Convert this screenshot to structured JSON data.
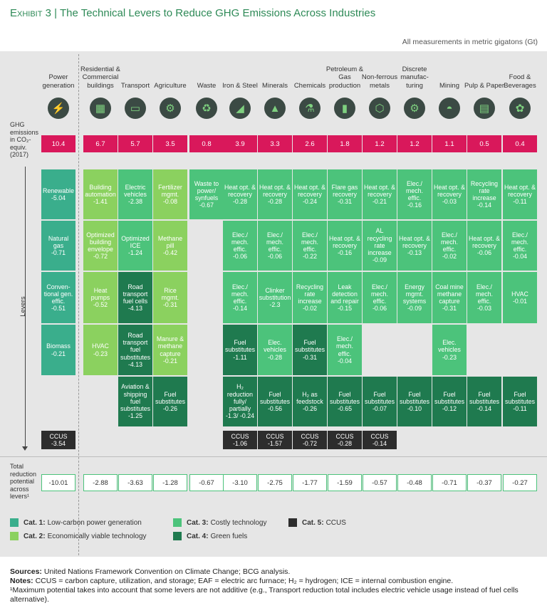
{
  "title": {
    "exhibit": "Exhibit 3",
    "separator": "|",
    "text": "The Technical Levers to Reduce GHG Emissions Across Industries"
  },
  "units_note": "All measurements in metric gigatons (Gt)",
  "colors": {
    "cat1": "#3aae8c",
    "cat2": "#8bd15f",
    "cat3": "#4cc37b",
    "cat4": "#1f7a4f",
    "cat5": "#2d2d2d",
    "emissions": "#d9185b",
    "title": "#2e8a57"
  },
  "row_labels": {
    "emissions": "GHG emissions in CO₂-equiv. (2017)",
    "levers": "Levers",
    "total": "Total reduction potential across levers¹"
  },
  "chart_data": {
    "type": "table",
    "columns": [
      {
        "name": "Power generation",
        "icon": "power-plant-icon",
        "emissions": "10.4",
        "total": "-10.01",
        "levers": [
          [
            "1",
            "Renewable",
            "-5.04"
          ],
          [
            "1",
            "Natural gas",
            "-0.71"
          ],
          [
            "1",
            "Conven-tional gen. effic.",
            "-0.51"
          ],
          [
            "1",
            "Biomass",
            "-0.21"
          ],
          null,
          [
            "5",
            "CCUS",
            "-3.54"
          ]
        ]
      },
      {
        "name": "Residential & Commercial buildings",
        "icon": "building-icon",
        "emissions": "6.7",
        "total": "-2.88",
        "levers": [
          [
            "2",
            "Building automation",
            "-1.41"
          ],
          [
            "2",
            "Optimized building envelope",
            "-0.72"
          ],
          [
            "2",
            "Heat pumps",
            "-0.52"
          ],
          [
            "2",
            "HVAC",
            "-0.23"
          ],
          null,
          null
        ]
      },
      {
        "name": "Transport",
        "icon": "car-icon",
        "emissions": "5.7",
        "total": "-3.63",
        "levers": [
          [
            "3",
            "Electric vehicles",
            "-2.38"
          ],
          [
            "3",
            "Optimized ICE",
            "-1.24"
          ],
          [
            "4",
            "Road transport fuel cells",
            "-4.13"
          ],
          [
            "4",
            "Road transport fuel substitutes",
            "-4.13"
          ],
          [
            "4",
            "Aviation & shipping fuel substitutes",
            "-1.25"
          ],
          null
        ]
      },
      {
        "name": "Agriculture",
        "icon": "tractor-icon",
        "emissions": "3.5",
        "total": "-1.28",
        "levers": [
          [
            "2",
            "Fertilizer mgmt.",
            "-0.08"
          ],
          [
            "2",
            "Methane pill",
            "-0.42"
          ],
          [
            "2",
            "Rice mgmt.",
            "-0.31"
          ],
          [
            "2",
            "Manure & methane capture",
            "-0.21"
          ],
          [
            "4",
            "Fuel substitutes",
            "-0.26"
          ],
          null
        ]
      },
      {
        "name": "Waste",
        "icon": "recycle-icon",
        "emissions": "0.8",
        "total": "-0.67",
        "levers": [
          [
            "3",
            "Waste to power/ synfuels",
            "-0.67"
          ],
          null,
          null,
          null,
          null,
          null
        ]
      },
      {
        "name": "Iron & Steel",
        "icon": "steel-icon",
        "emissions": "3.9",
        "total": "-3.10",
        "levers": [
          [
            "3",
            "Heat opt. & recovery",
            "-0.28"
          ],
          [
            "3",
            "Elec./ mech. effic.",
            "-0.06"
          ],
          [
            "3",
            "Elec./ mech. effic.",
            "-0.14"
          ],
          [
            "4",
            "Fuel substitutes",
            "-1.11"
          ],
          [
            "4",
            "H₂ reduction fully/ partially",
            "-1.3/ -0.24"
          ],
          [
            "5",
            "CCUS",
            "-1.06"
          ]
        ]
      },
      {
        "name": "Minerals",
        "icon": "minerals-icon",
        "emissions": "3.3",
        "total": "-2.75",
        "levers": [
          [
            "3",
            "Heat opt. & recovery",
            "-0.28"
          ],
          [
            "3",
            "Elec./ mech. effic.",
            "-0.06"
          ],
          [
            "3",
            "Clinker substitution",
            "-2.3"
          ],
          [
            "3",
            "Elec. vehicles",
            "-0.28"
          ],
          [
            "4",
            "Fuel substitutes",
            "-0.56"
          ],
          [
            "5",
            "CCUS",
            "-1.57"
          ]
        ]
      },
      {
        "name": "Chemicals",
        "icon": "flask-icon",
        "emissions": "2.6",
        "total": "-1.77",
        "levers": [
          [
            "3",
            "Heat opt. & recovery",
            "-0.24"
          ],
          [
            "3",
            "Elec./ mech. effic.",
            "-0.22"
          ],
          [
            "3",
            "Recycling rate increase",
            "-0.02"
          ],
          [
            "4",
            "Fuel substitutes",
            "-0.31"
          ],
          [
            "4",
            "H₂ as feedstock",
            "-0.26"
          ],
          [
            "5",
            "CCUS",
            "-0.72"
          ]
        ]
      },
      {
        "name": "Petroleum & Gas production",
        "icon": "oil-barrel-icon",
        "emissions": "1.8",
        "total": "-1.59",
        "levers": [
          [
            "3",
            "Flare gas recovery",
            "-0.31"
          ],
          [
            "3",
            "Heat opt. & recovery",
            "-0.16"
          ],
          [
            "3",
            "Leak detection and repair",
            "-0.15"
          ],
          [
            "3",
            "Elec./ mech. effic.",
            "-0.04"
          ],
          [
            "4",
            "Fuel substitutes",
            "-0.65"
          ],
          [
            "5",
            "CCUS",
            "-0.28"
          ]
        ]
      },
      {
        "name": "Non-ferrous metals",
        "icon": "metal-icon",
        "emissions": "1.2",
        "total": "-0.57",
        "levers": [
          [
            "3",
            "Heat opt. & recovery",
            "-0.21"
          ],
          [
            "3",
            "AL recycling rate increase",
            "-0.09"
          ],
          [
            "3",
            "Elec./ mech. effic.",
            "-0.06"
          ],
          null,
          [
            "4",
            "Fuel substitutes",
            "-0.07"
          ],
          [
            "5",
            "CCUS",
            "-0.14"
          ]
        ]
      },
      {
        "name": "Discrete manufac-turing",
        "icon": "gear-icon",
        "emissions": "1.2",
        "total": "-0.48",
        "levers": [
          [
            "3",
            "Elec./ mech. effic.",
            "-0.16"
          ],
          [
            "3",
            "Heat opt. & recovery",
            "-0.13"
          ],
          [
            "3",
            "Energy mgmt. systems",
            "-0.09"
          ],
          null,
          [
            "4",
            "Fuel substitutes",
            "-0.10"
          ],
          null
        ]
      },
      {
        "name": "Mining",
        "icon": "helmet-icon",
        "emissions": "1.1",
        "total": "-0.71",
        "levers": [
          [
            "3",
            "Heat opt. & recovery",
            "-0.03"
          ],
          [
            "3",
            "Elec./ mech. effic.",
            "-0.02"
          ],
          [
            "3",
            "Coal mine methane capture",
            "-0.31"
          ],
          [
            "3",
            "Elec. vehicles",
            "-0.23"
          ],
          [
            "4",
            "Fuel substitutes",
            "-0.12"
          ],
          null
        ]
      },
      {
        "name": "Pulp & Paper",
        "icon": "paper-icon",
        "emissions": "0.5",
        "total": "-0.37",
        "levers": [
          [
            "3",
            "Recycling rate increase",
            "-0.14"
          ],
          [
            "3",
            "Heat opt. & recovery",
            "-0.06"
          ],
          [
            "3",
            "Elec./ mech. effic.",
            "-0.03"
          ],
          null,
          [
            "4",
            "Fuel substitutes",
            "-0.14"
          ],
          null
        ]
      },
      {
        "name": "Food & Beverages",
        "icon": "food-icon",
        "emissions": "0.4",
        "total": "-0.27",
        "levers": [
          [
            "3",
            "Heat opt. & recovery",
            "-0.11"
          ],
          [
            "3",
            "Elec./ mech. effic.",
            "-0.04"
          ],
          [
            "3",
            "HVAC",
            "-0.01"
          ],
          null,
          [
            "4",
            "Fuel substitutes",
            "-0.11"
          ],
          null
        ]
      }
    ]
  },
  "legend": [
    {
      "cat": "Cat. 1:",
      "label": "Low-carbon power generation",
      "color": "#3aae8c"
    },
    {
      "cat": "Cat. 2:",
      "label": "Economically viable technology",
      "color": "#8bd15f"
    },
    {
      "cat": "Cat. 3:",
      "label": "Costly technology",
      "color": "#4cc37b"
    },
    {
      "cat": "Cat. 4:",
      "label": "Green fuels",
      "color": "#1f7a4f"
    },
    {
      "cat": "Cat. 5:",
      "label": "CCUS",
      "color": "#2d2d2d"
    }
  ],
  "notes": {
    "sources_label": "Sources:",
    "sources": "United Nations Framework Convention on Climate Change; BCG analysis.",
    "notes_label": "Notes:",
    "notes": "CCUS = carbon capture, utilization, and storage; EAF = electric arc furnace; H₂ = hydrogen; ICE = internal combustion engine.",
    "footnote": "¹Maximum potential takes into account that some levers are not additive (e.g., Transport reduction total includes electric vehicle usage instead of fuel cells alternative)."
  }
}
